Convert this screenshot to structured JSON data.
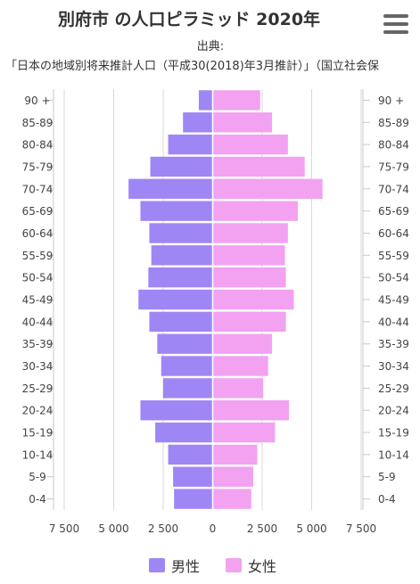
{
  "chart_data": {
    "type": "bar",
    "title": "別府市 の人口ピラミッド 2020年",
    "subtitle_line1": "出典:",
    "subtitle_line2": "「日本の地域別将来推計人口（平成30(2018)年3月推計）」（国立社会保",
    "categories": [
      "90 +",
      "85-89",
      "80-84",
      "75-79",
      "70-74",
      "65-69",
      "60-64",
      "55-59",
      "50-54",
      "45-49",
      "40-44",
      "35-39",
      "30-34",
      "25-29",
      "20-24",
      "15-19",
      "10-14",
      "5-9",
      "0-4"
    ],
    "series": [
      {
        "name": "男性",
        "color": "#9f86f5",
        "values": [
          700,
          1500,
          2250,
          3150,
          4250,
          3650,
          3200,
          3100,
          3250,
          3750,
          3200,
          2800,
          2600,
          2500,
          3650,
          2900,
          2250,
          2000,
          1950
        ]
      },
      {
        "name": "女性",
        "color": "#f2a2f0",
        "values": [
          2400,
          3000,
          3800,
          4650,
          5550,
          4300,
          3800,
          3650,
          3700,
          4100,
          3700,
          3000,
          2800,
          2550,
          3850,
          3150,
          2250,
          2050,
          1950
        ]
      }
    ],
    "xlim": [
      -7500,
      7500
    ],
    "xticks": [
      -7500,
      -5000,
      -2500,
      0,
      2500,
      5000,
      7500
    ],
    "xtick_labels": [
      "7 500",
      "5 000",
      "2 500",
      "0",
      "2 500",
      "5 000",
      "7 500"
    ],
    "legend_position": "bottom",
    "grid": true
  },
  "menu": {
    "icon": "hamburger-menu-icon"
  }
}
